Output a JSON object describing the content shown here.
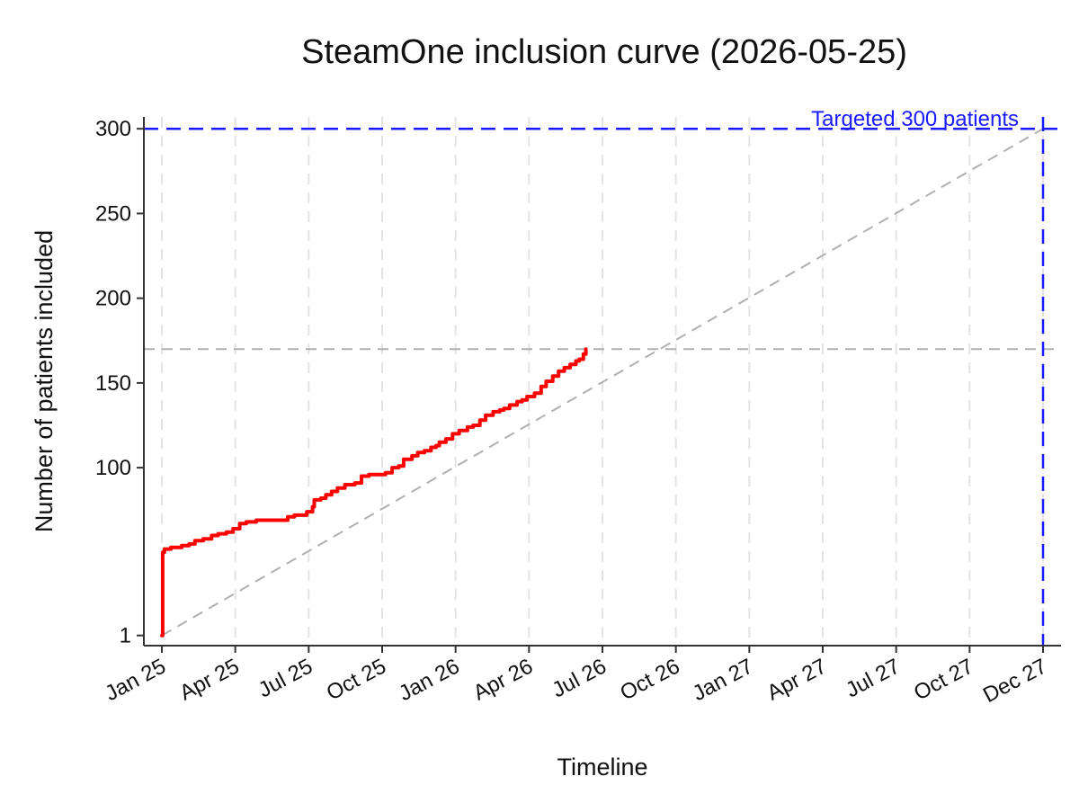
{
  "chart_data": {
    "type": "line",
    "title": "SteamOne inclusion curve (2026-05-25)",
    "xlabel": "Timeline",
    "ylabel": "Number of patients included",
    "x_tick_labels": [
      "Jan 25",
      "Apr 25",
      "Jul 25",
      "Oct 25",
      "Jan 26",
      "Apr 26",
      "Jul 26",
      "Oct 26",
      "Jan 27",
      "Apr 27",
      "Jul 27",
      "Oct 27",
      "Dec 27"
    ],
    "y_ticks": [
      1,
      100,
      150,
      200,
      250,
      300
    ],
    "ylim": [
      -5,
      307
    ],
    "xlim": [
      "2025-01-01",
      "2027-12-01"
    ],
    "grid": "vertical dashed",
    "target": {
      "value": 300,
      "label": "Targeted 300 patients",
      "date": "2027-12-01",
      "color": "#1a1aff"
    },
    "current_level": {
      "value": 170,
      "color": "#b0b0b0"
    },
    "expected_line": {
      "from": [
        "2025-01-01",
        1
      ],
      "to": [
        "2027-12-01",
        300
      ],
      "color": "#b0b0b0"
    },
    "series": [
      {
        "color": "#ff0000",
        "points": [
          [
            "2025-01-01",
            1
          ],
          [
            "2025-01-02",
            50
          ],
          [
            "2025-01-04",
            52
          ],
          [
            "2025-01-12",
            53
          ],
          [
            "2025-01-25",
            54
          ],
          [
            "2025-02-03",
            55
          ],
          [
            "2025-02-10",
            57
          ],
          [
            "2025-02-20",
            58
          ],
          [
            "2025-03-02",
            60
          ],
          [
            "2025-03-10",
            61
          ],
          [
            "2025-03-20",
            62
          ],
          [
            "2025-03-28",
            64
          ],
          [
            "2025-04-05",
            67
          ],
          [
            "2025-04-13",
            68
          ],
          [
            "2025-04-25",
            69
          ],
          [
            "2025-05-10",
            69
          ],
          [
            "2025-05-25",
            69
          ],
          [
            "2025-06-02",
            71
          ],
          [
            "2025-06-10",
            72
          ],
          [
            "2025-06-25",
            74
          ],
          [
            "2025-07-02",
            77
          ],
          [
            "2025-07-04",
            81
          ],
          [
            "2025-07-12",
            82
          ],
          [
            "2025-07-18",
            84
          ],
          [
            "2025-07-25",
            86
          ],
          [
            "2025-08-01",
            88
          ],
          [
            "2025-08-10",
            90
          ],
          [
            "2025-08-22",
            91
          ],
          [
            "2025-08-30",
            95
          ],
          [
            "2025-09-08",
            96
          ],
          [
            "2025-09-20",
            96
          ],
          [
            "2025-09-28",
            97
          ],
          [
            "2025-10-06",
            100
          ],
          [
            "2025-10-14",
            101
          ],
          [
            "2025-10-20",
            105
          ],
          [
            "2025-10-30",
            107
          ],
          [
            "2025-11-06",
            109
          ],
          [
            "2025-11-14",
            110
          ],
          [
            "2025-11-22",
            112
          ],
          [
            "2025-11-28",
            113
          ],
          [
            "2025-12-02",
            115
          ],
          [
            "2025-12-10",
            117
          ],
          [
            "2025-12-18",
            120
          ],
          [
            "2025-12-26",
            122
          ],
          [
            "2026-01-05",
            124
          ],
          [
            "2026-01-12",
            125
          ],
          [
            "2026-01-20",
            128
          ],
          [
            "2026-01-27",
            131
          ],
          [
            "2026-02-05",
            133
          ],
          [
            "2026-02-13",
            134
          ],
          [
            "2026-02-18",
            135
          ],
          [
            "2026-02-25",
            137
          ],
          [
            "2026-03-06",
            139
          ],
          [
            "2026-03-12",
            140
          ],
          [
            "2026-03-18",
            142
          ],
          [
            "2026-03-27",
            144
          ],
          [
            "2026-04-04",
            148
          ],
          [
            "2026-04-10",
            151
          ],
          [
            "2026-04-18",
            154
          ],
          [
            "2026-04-25",
            157
          ],
          [
            "2026-05-02",
            159
          ],
          [
            "2026-05-09",
            161
          ],
          [
            "2026-05-16",
            163
          ],
          [
            "2026-05-20",
            164
          ],
          [
            "2026-05-25",
            167
          ],
          [
            "2026-05-28",
            170
          ]
        ]
      }
    ]
  }
}
